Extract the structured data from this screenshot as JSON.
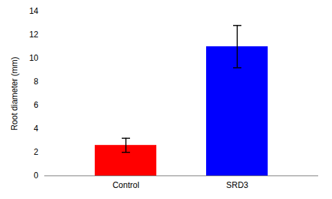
{
  "chart_data": {
    "type": "bar",
    "categories": [
      "Control",
      "SRD3"
    ],
    "values": [
      2.6,
      11.0
    ],
    "errors": [
      0.6,
      1.8
    ],
    "colors": [
      "#ff0000",
      "#0000ff"
    ],
    "ylabel": "Root diameter (mm)",
    "ylim": [
      0,
      14
    ],
    "yticks": [
      0,
      2,
      4,
      6,
      8,
      10,
      12,
      14
    ],
    "grid": false
  }
}
